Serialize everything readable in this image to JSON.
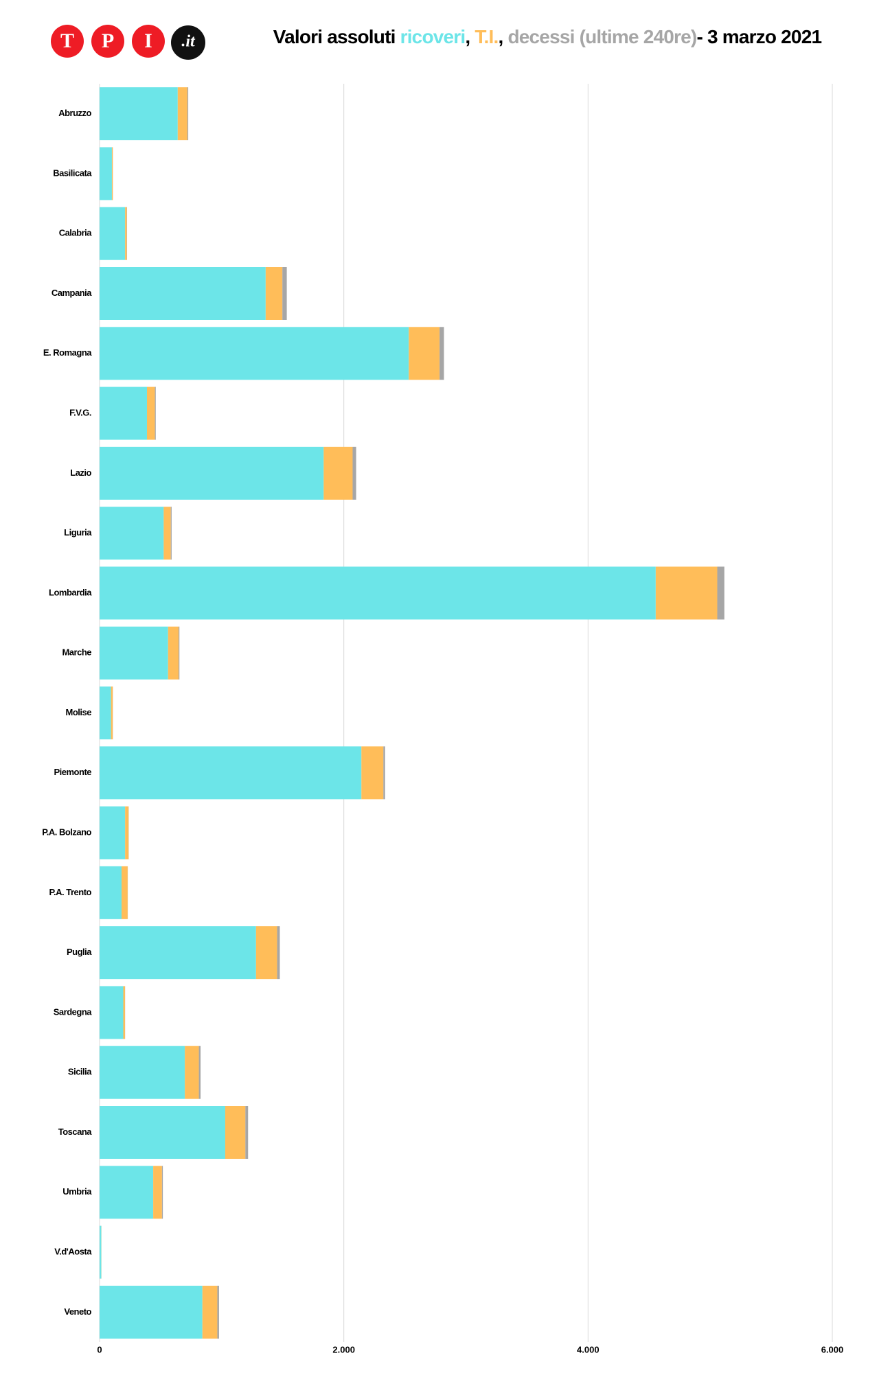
{
  "logo": {
    "letters": [
      "T",
      "P",
      "I"
    ],
    "suffix": ".it"
  },
  "chart_data": {
    "type": "stacked-barh",
    "title_prefix": "Valori assoluti",
    "title_separator": ",",
    "title_suffix": "- 3 marzo 2021",
    "categories": [
      "Abruzzo",
      "Basilicata",
      "Calabria",
      "Campania",
      "E. Romagna",
      "F.V.G.",
      "Lazio",
      "Liguria",
      "Lombardia",
      "Marche",
      "Molise",
      "Piemonte",
      "P.A. Bolzano",
      "P.A. Trento",
      "Puglia",
      "Sardegna",
      "Sicilia",
      "Toscana",
      "Umbria",
      "V.d'Aosta",
      "Veneto"
    ],
    "series": [
      {
        "name": "ricoveri",
        "color": "#6ce5e8",
        "values": [
          640,
          101,
          209,
          1360,
          2532,
          388,
          1835,
          525,
          4554,
          561,
          94,
          2144,
          209,
          180,
          1281,
          194,
          698,
          1029,
          439,
          14,
          842
        ]
      },
      {
        "name": "T.I.",
        "color": "#ffbd59",
        "values": [
          79,
          7,
          14,
          137,
          252,
          65,
          237,
          58,
          504,
          86,
          14,
          180,
          29,
          50,
          173,
          14,
          115,
          165,
          72,
          1,
          122
        ]
      },
      {
        "name": "decessi (ultime 240re)",
        "color": "#a6a6a6",
        "values": [
          7,
          1,
          2,
          36,
          36,
          7,
          29,
          7,
          58,
          7,
          1,
          14,
          1,
          1,
          22,
          1,
          14,
          22,
          7,
          0,
          14
        ]
      }
    ],
    "xlim": [
      0,
      6000
    ],
    "xticks": [
      0,
      {
        "value": 2000,
        "label": "2.000"
      },
      {
        "value": 4000,
        "label": "4.000"
      },
      {
        "value": 6000,
        "label": "6.000"
      }
    ],
    "grid": true
  }
}
